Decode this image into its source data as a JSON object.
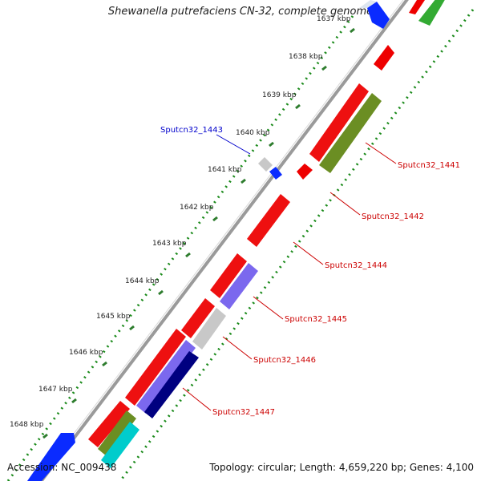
{
  "title": "Shewanella putrefaciens CN-32, complete genome",
  "footer": {
    "accession": "Accession: NC_009438",
    "summary": "Topology: circular; Length: 4,659,220 bp; Genes: 4,100"
  },
  "colors": {
    "backbone": "#888888",
    "gc_dots": "#1a8a1a",
    "tick": "#2e7d2e",
    "forward_cds": "#ee0000",
    "reverse_cds": "#0000ee",
    "gray_feature": "#c8c8c8",
    "olive_feature": "#6b8e23",
    "slate_feature": "#7b68ee",
    "navy_feature": "#000080",
    "cyan_feature": "#00cccc",
    "green_feature": "#33aa33"
  },
  "ticks": [
    {
      "label": "1637 kbp"
    },
    {
      "label": "1638 kbp"
    },
    {
      "label": "1639 kbp"
    },
    {
      "label": "1640 kbp"
    },
    {
      "label": "1641 kbp"
    },
    {
      "label": "1642 kbp"
    },
    {
      "label": "1643 kbp"
    },
    {
      "label": "1644 kbp"
    },
    {
      "label": "1645 kbp"
    },
    {
      "label": "1646 kbp"
    },
    {
      "label": "1647 kbp"
    },
    {
      "label": "1648 kbp"
    }
  ],
  "gene_labels": [
    {
      "name": "Sputcn32_1443",
      "color": "#0000cc"
    },
    {
      "name": "Sputcn32_1441",
      "color": "#cc0000"
    },
    {
      "name": "Sputcn32_1442",
      "color": "#cc0000"
    },
    {
      "name": "Sputcn32_1444",
      "color": "#cc0000"
    },
    {
      "name": "Sputcn32_1445",
      "color": "#cc0000"
    },
    {
      "name": "Sputcn32_1446",
      "color": "#cc0000"
    },
    {
      "name": "Sputcn32_1447",
      "color": "#cc0000"
    }
  ]
}
